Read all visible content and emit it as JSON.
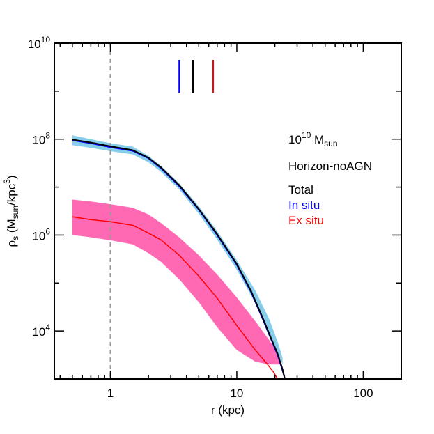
{
  "chart_data": {
    "type": "line",
    "xlabel": "r (kpc)",
    "ylabel": {
      "main": "ρ",
      "sub": "s",
      "mid1": " (M",
      "sub2": "sun",
      "mid2": "/kpc",
      "sup": "3",
      "end": ")"
    },
    "xscale": "log",
    "yscale": "log",
    "xlim": [
      0.36,
      200
    ],
    "ylim": [
      1000,
      10000000000
    ],
    "x_ticks": [
      {
        "value": 1,
        "label": "1"
      },
      {
        "value": 10,
        "label": "10"
      },
      {
        "value": 100,
        "label": "100"
      }
    ],
    "y_ticks": [
      {
        "value": 10000,
        "base": "10",
        "exp": "4"
      },
      {
        "value": 1000000,
        "base": "10",
        "exp": "6"
      },
      {
        "value": 100000000,
        "base": "10",
        "exp": "8"
      },
      {
        "value": 10000000000,
        "base": "10",
        "exp": "10"
      }
    ],
    "reference_line": {
      "x": 1,
      "style": "dashed",
      "color": "#999999"
    },
    "markers": [
      {
        "x": 3.5,
        "color": "#0000ff"
      },
      {
        "x": 4.5,
        "color": "#000000"
      },
      {
        "x": 6.5,
        "color": "#ff0000"
      }
    ],
    "legend": {
      "placement": "right",
      "mass_base": "10",
      "mass_exp": "10",
      "mass_unit": " M",
      "mass_sub": "sun",
      "simulation": "Horizon-noAGN",
      "entries": [
        {
          "label": "Total",
          "color": "#000000"
        },
        {
          "label": "In situ",
          "color": "#0000ff"
        },
        {
          "label": "Ex situ",
          "color": "#ff0000"
        }
      ]
    },
    "bands": [
      {
        "series": "In situ",
        "color": "#87ceeb",
        "x": [
          0.5,
          0.7,
          1.0,
          1.5,
          2.0,
          2.5,
          3.5,
          5.0,
          7.0,
          10,
          14,
          18,
          21,
          23
        ],
        "upper": [
          120000000,
          100000000,
          82000000,
          70000000,
          45000000,
          28000000,
          12000000,
          4000000,
          1200000,
          300000,
          70000,
          18000,
          6000,
          2800
        ],
        "lower": [
          75000000,
          66000000,
          56000000,
          48000000,
          33000000,
          21000000,
          9000000,
          2800000,
          800000,
          190000,
          38000,
          9000,
          3600,
          2000
        ]
      },
      {
        "series": "Ex situ",
        "color": "#ff69b4",
        "x": [
          0.5,
          0.7,
          1.0,
          1.5,
          2.0,
          2.5,
          3.5,
          5.0,
          7.0,
          10,
          14,
          18,
          21,
          22
        ],
        "upper": [
          5500000,
          5000000,
          4400000,
          3700000,
          2700000,
          1800000,
          900000,
          380000,
          150000,
          50000,
          16000,
          6500,
          3500,
          2800
        ],
        "lower": [
          1000000,
          900000,
          780000,
          640000,
          420000,
          280000,
          120000,
          40000,
          12000,
          4000,
          2300,
          2000,
          2000,
          2000
        ]
      }
    ],
    "series": [
      {
        "name": "In situ",
        "color": "#0000ff",
        "width": 2,
        "x": [
          0.5,
          0.7,
          1.0,
          1.5,
          2.0,
          2.5,
          3.5,
          5.0,
          7.0,
          10,
          13,
          16,
          19,
          21,
          23,
          24
        ],
        "y": [
          95000000,
          82000000,
          68000000,
          57000000,
          40000000,
          25000000,
          10500000,
          3400000,
          1000000,
          240000,
          64000,
          18000,
          6000,
          3200,
          1500,
          1000
        ]
      },
      {
        "name": "Total",
        "color": "#000000",
        "width": 2,
        "x": [
          0.5,
          0.7,
          1.0,
          1.5,
          2.0,
          2.5,
          3.5,
          5.0,
          7.0,
          10,
          13,
          16,
          19,
          21,
          23,
          24
        ],
        "y": [
          98000000,
          85000000,
          71000000,
          59000000,
          41000000,
          26000000,
          11000000,
          3500000,
          1040000,
          250000,
          67000,
          19000,
          6300,
          3400,
          1600,
          1000
        ]
      },
      {
        "name": "Ex situ",
        "color": "#ff0000",
        "width": 1.5,
        "x": [
          0.5,
          0.7,
          1.0,
          1.5,
          2.0,
          2.5,
          3.5,
          5.0,
          7.0,
          10,
          14,
          17,
          19.5,
          21
        ],
        "y": [
          2400000,
          2100000,
          1900000,
          1600000,
          1100000,
          800000,
          380000,
          140000,
          48000,
          13000,
          4000,
          2200,
          1400,
          1000
        ]
      }
    ]
  }
}
